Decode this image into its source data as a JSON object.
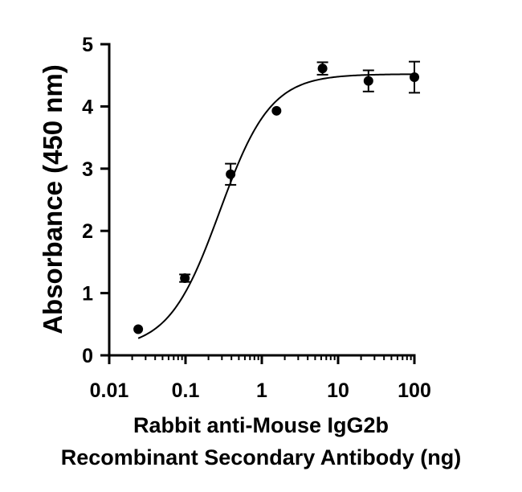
{
  "chart_data": {
    "type": "scatter",
    "title": "",
    "xlabel_lines": [
      "Rabbit anti-Mouse IgG2b",
      "Recombinant Secondary Antibody (ng)"
    ],
    "ylabel": "Absorbance (450 nm)",
    "x_scale": "log",
    "xlim": [
      0.01,
      100
    ],
    "ylim": [
      0,
      5
    ],
    "x_ticks": [
      0.01,
      0.1,
      1,
      10,
      100
    ],
    "x_tick_labels": [
      "0.01",
      "0.1",
      "1",
      "10",
      "100"
    ],
    "y_ticks": [
      0,
      1,
      2,
      3,
      4,
      5
    ],
    "y_tick_labels": [
      "0",
      "1",
      "2",
      "3",
      "4",
      "5"
    ],
    "grid": false,
    "series": [
      {
        "points": [
          {
            "x": 0.024,
            "y": 0.42,
            "err": 0.0
          },
          {
            "x": 0.098,
            "y": 1.24,
            "err": 0.06
          },
          {
            "x": 0.39,
            "y": 2.91,
            "err": 0.17
          },
          {
            "x": 1.56,
            "y": 3.93,
            "err": 0.0
          },
          {
            "x": 6.25,
            "y": 4.61,
            "err": 0.1
          },
          {
            "x": 25,
            "y": 4.41,
            "err": 0.17
          },
          {
            "x": 100,
            "y": 4.47,
            "err": 0.25
          }
        ]
      }
    ],
    "fit_curve": {
      "model": "4PL",
      "bottom": 0.1,
      "top": 4.52,
      "ec50": 0.28,
      "hill": 1.3
    },
    "colors": {
      "points": "#000000",
      "line": "#000000",
      "axis": "#000000"
    }
  }
}
